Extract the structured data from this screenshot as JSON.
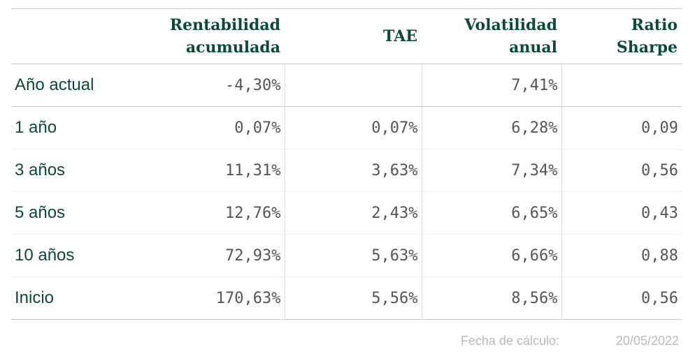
{
  "table": {
    "headers": [
      {
        "line1": "",
        "line2": ""
      },
      {
        "line1": "Rentabilidad",
        "line2": "acumulada"
      },
      {
        "line1": "TAE",
        "line2": ""
      },
      {
        "line1": "Volatilidad",
        "line2": "anual"
      },
      {
        "line1": "Ratio",
        "line2": "Sharpe"
      }
    ],
    "rows": [
      {
        "period": "Año actual",
        "rentabilidad": "-4,30%",
        "tae": "",
        "volatilidad": "7,41%",
        "sharpe": ""
      },
      {
        "period": "1 año",
        "rentabilidad": "0,07%",
        "tae": "0,07%",
        "volatilidad": "6,28%",
        "sharpe": "0,09"
      },
      {
        "period": "3 años",
        "rentabilidad": "11,31%",
        "tae": "3,63%",
        "volatilidad": "7,34%",
        "sharpe": "0,56"
      },
      {
        "period": "5 años",
        "rentabilidad": "12,76%",
        "tae": "2,43%",
        "volatilidad": "6,65%",
        "sharpe": "0,43"
      },
      {
        "period": "10 años",
        "rentabilidad": "72,93%",
        "tae": "5,63%",
        "volatilidad": "6,66%",
        "sharpe": "0,88"
      },
      {
        "period": "Inicio",
        "rentabilidad": "170,63%",
        "tae": "5,56%",
        "volatilidad": "8,56%",
        "sharpe": "0,56"
      }
    ]
  },
  "footer": {
    "label": "Fecha de cálculo:",
    "date": "20/05/2022"
  },
  "colors": {
    "header_text": "#0b4a3a",
    "period_text": "#0b4a3a",
    "value_text": "#555555",
    "footer_text": "#b9b9b9"
  }
}
